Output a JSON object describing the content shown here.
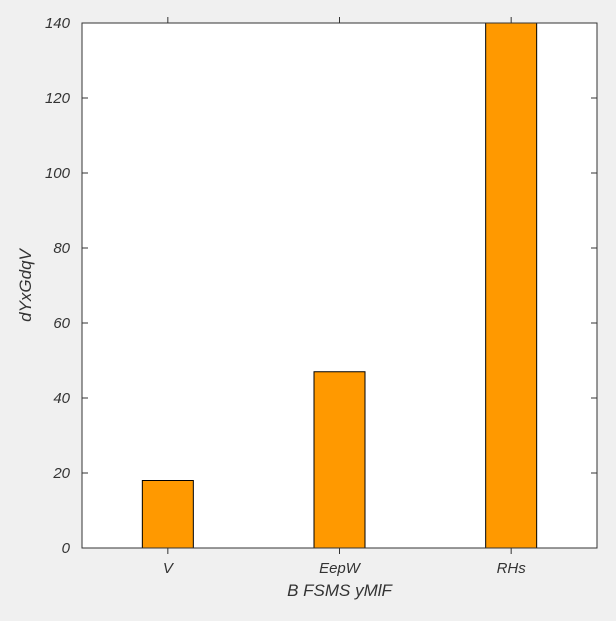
{
  "chart_data": {
    "type": "bar",
    "categories": [
      "V",
      "EepW",
      "RHs"
    ],
    "values": [
      18,
      47,
      140
    ],
    "xlabel": "B FSMS yMlF",
    "ylabel": "dYxGdqV",
    "ylim": [
      0,
      140
    ],
    "yticks": [
      0,
      20,
      40,
      60,
      80,
      100,
      120,
      140
    ],
    "grid": false,
    "legend": "none",
    "colors": {
      "bar": "#ff9900",
      "bar_edge": "#000000",
      "plot_background": "#ffffff",
      "figure_background": "#f0f0f0",
      "axis": "#333333",
      "text": "#333333"
    }
  }
}
